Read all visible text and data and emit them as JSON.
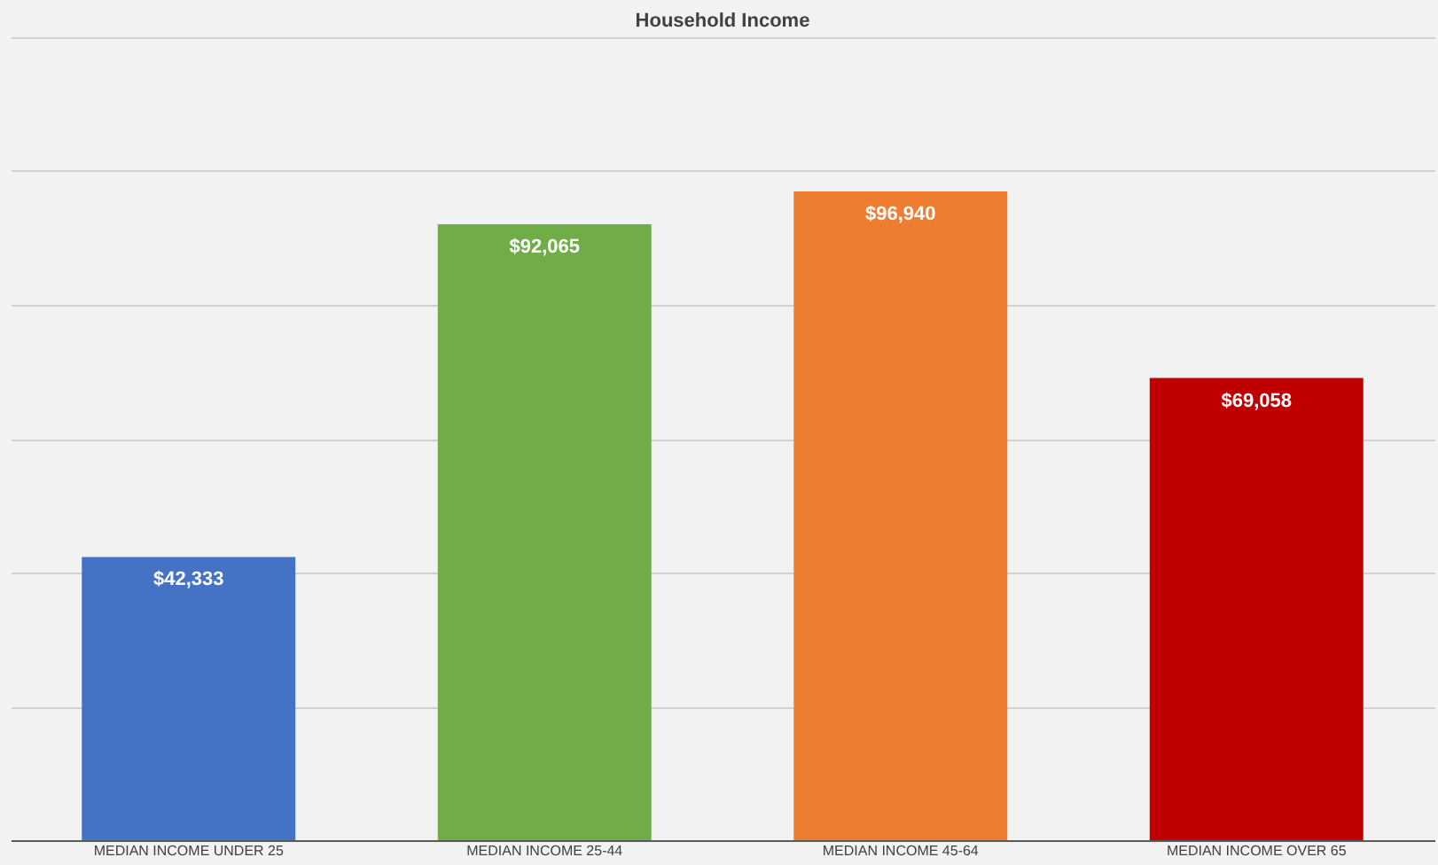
{
  "chart_data": {
    "type": "bar",
    "title": "Household Income",
    "categories": [
      "MEDIAN INCOME UNDER 25",
      "MEDIAN INCOME 25-44",
      "MEDIAN INCOME 45-64",
      "MEDIAN INCOME OVER 65"
    ],
    "values": [
      42333,
      92065,
      96940,
      69058
    ],
    "colors": [
      "#4472c4",
      "#70ad47",
      "#ed7d31",
      "#c00000"
    ],
    "value_labels": [
      "$42,333",
      "$92,065",
      "$96,940",
      "$69,058"
    ],
    "ylim": [
      0,
      120000
    ],
    "yticks": [
      {
        "value": 0,
        "label": null
      },
      {
        "value": 20000,
        "label": null
      },
      {
        "value": 40000,
        "label": null
      },
      {
        "value": 60000,
        "label": null
      },
      {
        "value": 80000,
        "label": null
      },
      {
        "value": 100000,
        "label": null
      },
      {
        "value": 120000,
        "label": null
      }
    ],
    "grid": "y",
    "tick_labels": "x"
  }
}
